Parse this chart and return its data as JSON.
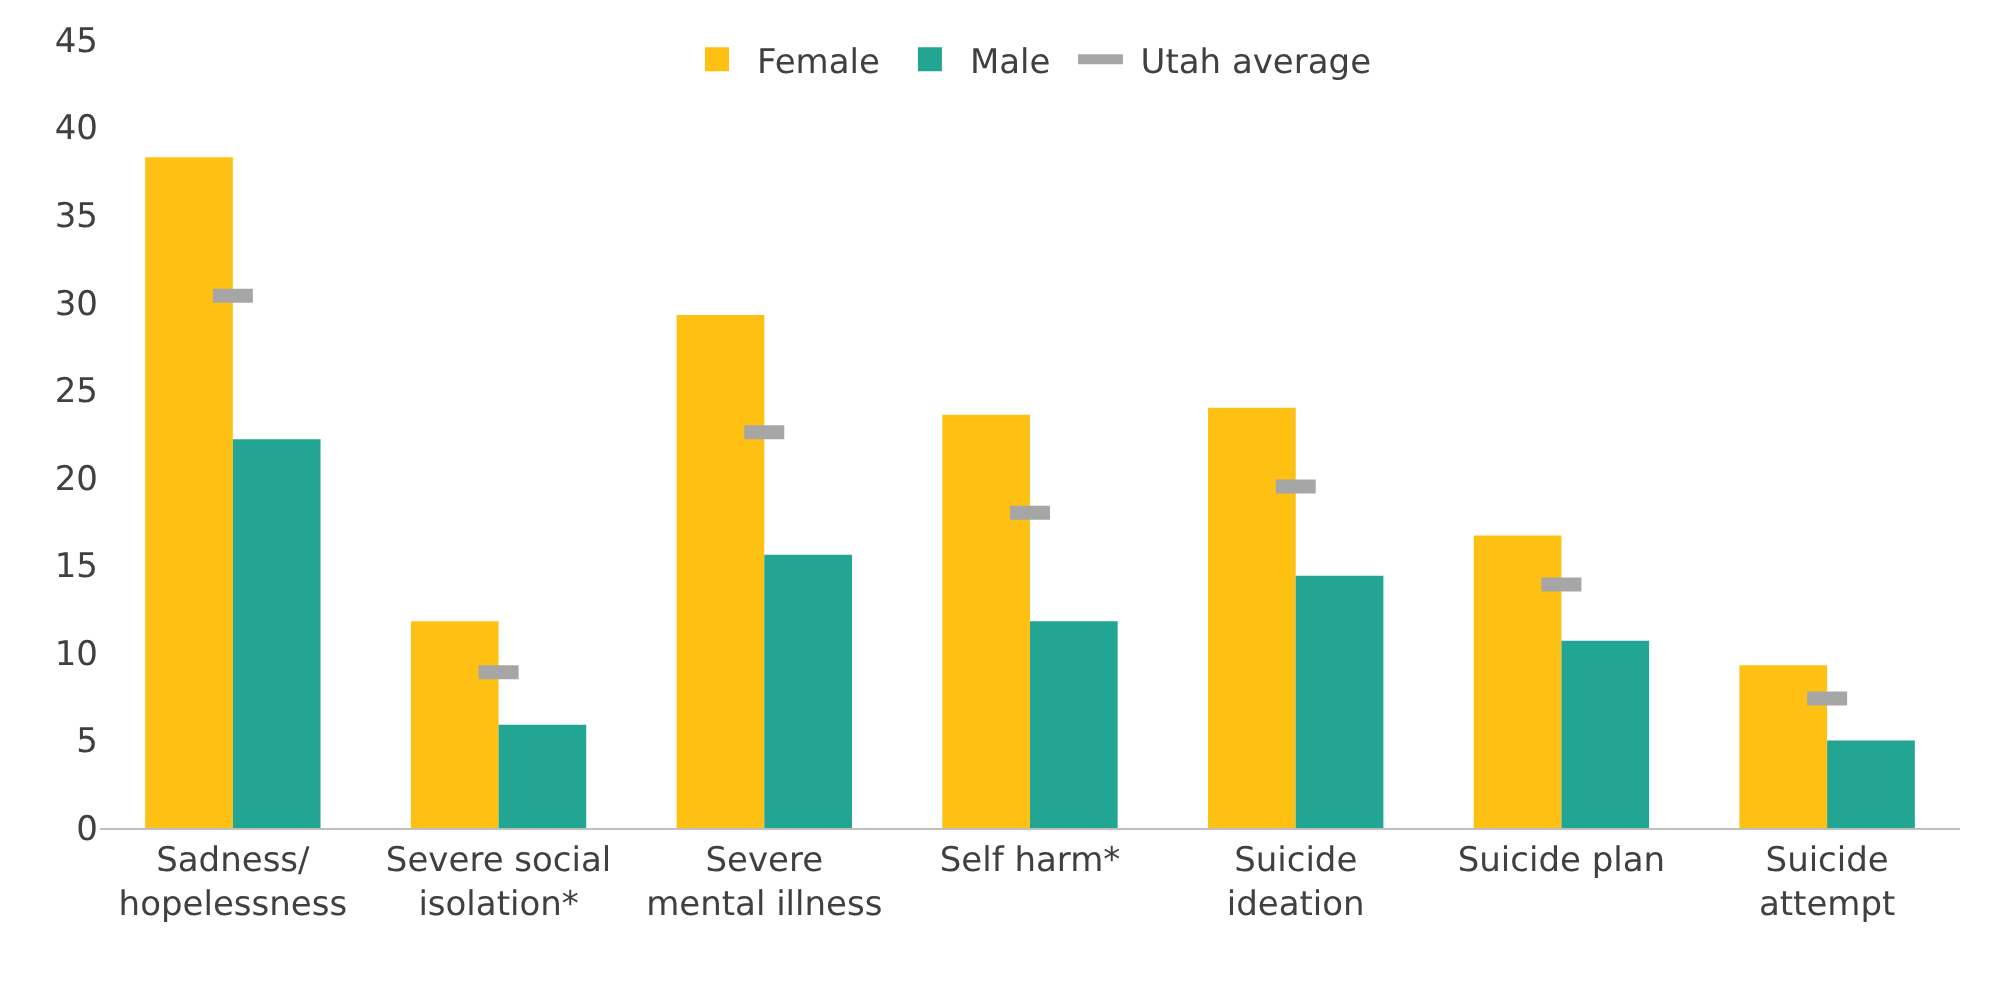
{
  "chart_data": {
    "type": "bar",
    "categories": [
      "Sadness/\nhopelessness",
      "Severe social\nisolation*",
      "Severe\nmental illness",
      "Self harm*",
      "Suicide\nideation",
      "Suicide plan",
      "Suicide\nattempt"
    ],
    "series": [
      {
        "name": "Female",
        "color": "#ffc014",
        "values": [
          38.3,
          11.8,
          29.3,
          23.6,
          24.0,
          16.7,
          9.3
        ]
      },
      {
        "name": "Male",
        "color": "#22a593",
        "values": [
          22.2,
          5.9,
          15.6,
          11.8,
          14.4,
          10.7,
          5.0
        ]
      },
      {
        "name": "Utah average",
        "type": "scatter",
        "color": "#a6a6a6",
        "values": [
          30.4,
          8.9,
          22.6,
          18.0,
          19.5,
          13.9,
          7.4
        ]
      }
    ],
    "ylim": [
      0,
      45
    ],
    "yticks": [
      0,
      5,
      10,
      15,
      20,
      25,
      30,
      35,
      40,
      45
    ],
    "grid": false,
    "legend": "top"
  }
}
